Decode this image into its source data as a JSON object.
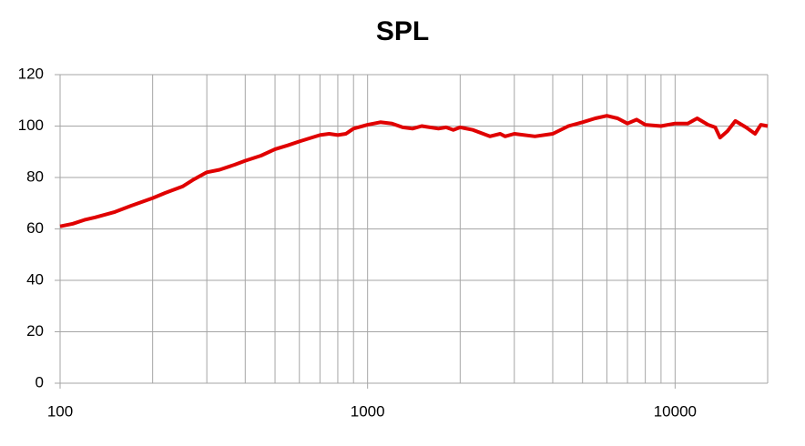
{
  "chart_data": {
    "type": "line",
    "title": "SPL",
    "x": [
      100,
      110,
      120,
      130,
      150,
      170,
      200,
      220,
      250,
      270,
      300,
      330,
      370,
      400,
      450,
      500,
      550,
      600,
      700,
      750,
      800,
      850,
      900,
      1000,
      1100,
      1200,
      1300,
      1400,
      1500,
      1700,
      1800,
      1900,
      2000,
      2200,
      2500,
      2700,
      2800,
      3000,
      3500,
      4000,
      4500,
      5000,
      5500,
      6000,
      6500,
      7000,
      7500,
      8000,
      9000,
      10000,
      11000,
      11800,
      12800,
      13500,
      14000,
      14800,
      15700,
      17000,
      18200,
      19000,
      20000
    ],
    "series": [
      {
        "name": "SPL",
        "color": "#e00000",
        "values": [
          61,
          62,
          63.5,
          64.5,
          66.5,
          69,
          72,
          74,
          76.5,
          79,
          82,
          83,
          85,
          86.5,
          88.5,
          91,
          92.5,
          94,
          96.5,
          97,
          96.5,
          97,
          99,
          100.5,
          101.5,
          101,
          99.5,
          99,
          100,
          99,
          99.5,
          98.5,
          99.5,
          98.5,
          96,
          97,
          96,
          97,
          96,
          97,
          100,
          101.5,
          103,
          104,
          103,
          101,
          102.5,
          100.5,
          100,
          101,
          101,
          103,
          100.5,
          99.5,
          95.5,
          98,
          102,
          99.5,
          97,
          100.5,
          100
        ]
      }
    ],
    "xlim": [
      100,
      20000
    ],
    "xscale": "log",
    "xticks": [
      100,
      1000,
      10000
    ],
    "x_minor_ticks": [
      200,
      300,
      400,
      500,
      600,
      700,
      800,
      900,
      2000,
      3000,
      4000,
      5000,
      6000,
      7000,
      8000,
      9000,
      20000
    ],
    "ylim": [
      0,
      120
    ],
    "yticks": [
      0,
      20,
      40,
      60,
      80,
      100,
      120
    ],
    "grid": true
  }
}
